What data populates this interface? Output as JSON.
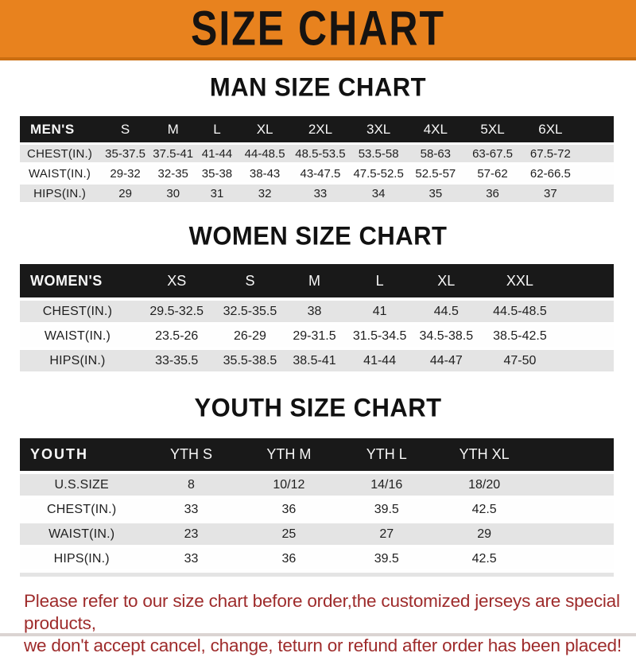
{
  "banner": {
    "title": "SIZE CHART",
    "bg_color": "#E8821E",
    "text_color": "#161311"
  },
  "sections": [
    {
      "heading": "MAN SIZE CHART",
      "table": {
        "label": "MEN'S",
        "columns": [
          "S",
          "M",
          "L",
          "XL",
          "2XL",
          "3XL",
          "4XL",
          "5XL",
          "6XL"
        ],
        "rows": [
          {
            "label": "CHEST(IN.)",
            "values": [
              "35-37.5",
              "37.5-41",
              "41-44",
              "44-48.5",
              "48.5-53.5",
              "53.5-58",
              "58-63",
              "63-67.5",
              "67.5-72"
            ]
          },
          {
            "label": "WAIST(IN.)",
            "values": [
              "29-32",
              "32-35",
              "35-38",
              "38-43",
              "43-47.5",
              "47.5-52.5",
              "52.5-57",
              "57-62",
              "62-66.5"
            ]
          },
          {
            "label": "HIPS(IN.)",
            "values": [
              "29",
              "30",
              "31",
              "32",
              "33",
              "34",
              "35",
              "36",
              "37"
            ]
          }
        ]
      }
    },
    {
      "heading": "WOMEN SIZE CHART",
      "table": {
        "label": "WOMEN'S",
        "columns": [
          "XS",
          "S",
          "M",
          "L",
          "XL",
          "XXL"
        ],
        "rows": [
          {
            "label": "CHEST(IN.)",
            "values": [
              "29.5-32.5",
              "32.5-35.5",
              "38",
              "41",
              "44.5",
              "44.5-48.5"
            ]
          },
          {
            "label": "WAIST(IN.)",
            "values": [
              "23.5-26",
              "26-29",
              "29-31.5",
              "31.5-34.5",
              "34.5-38.5",
              "38.5-42.5"
            ]
          },
          {
            "label": "HIPS(IN.)",
            "values": [
              "33-35.5",
              "35.5-38.5",
              "38.5-41",
              "41-44",
              "44-47",
              "47-50"
            ]
          }
        ]
      }
    },
    {
      "heading": "YOUTH SIZE CHART",
      "table": {
        "label": "YOUTH",
        "columns": [
          "YTH S",
          "YTH M",
          "YTH L",
          "YTH XL"
        ],
        "rows": [
          {
            "label": "U.S.SIZE",
            "values": [
              "8",
              "10/12",
              "14/16",
              "18/20"
            ]
          },
          {
            "label": "CHEST(IN.)",
            "values": [
              "33",
              "36",
              "39.5",
              "42.5"
            ]
          },
          {
            "label": "WAIST(IN.)",
            "values": [
              "23",
              "25",
              "27",
              "29"
            ]
          },
          {
            "label": "HIPS(IN.)",
            "values": [
              "33",
              "36",
              "39.5",
              "42.5"
            ]
          }
        ]
      }
    }
  ],
  "notice": {
    "color": "#9E2B2B",
    "lines": [
      "Please refer to our size chart before order,the customized jerseys are special products,",
      "we don't accept cancel, change, teturn or refund after order has been placed!"
    ]
  },
  "style_colors": {
    "header_bar": "#191919",
    "row_shade": "#E4E4E4"
  }
}
